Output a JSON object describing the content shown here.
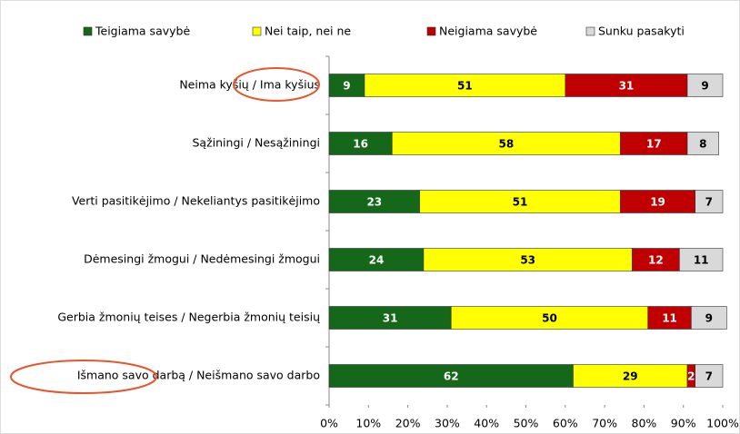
{
  "chart_data": {
    "type": "stacked-bar-horizontal",
    "categories": [
      "Neima kyšių / Ima kyšius",
      "Sąžiningi / Nesąžiningi",
      "Verti pasitikėjimo  / Nekeliantys pasitikėjimo",
      "Dėmesingi žmogui  / Nedėmesingi žmogui",
      "Gerbia žmonių teises / Negerbia žmonių teisių",
      "Išmano savo darbą / Neišmano savo darbo"
    ],
    "series": [
      {
        "name": "Teigiama savybė",
        "color": "#15671a",
        "values": [
          9,
          16,
          23,
          24,
          31,
          62
        ]
      },
      {
        "name": "Nei taip, nei ne",
        "color": "#ffff00",
        "values": [
          51,
          58,
          51,
          53,
          50,
          29
        ]
      },
      {
        "name": "Neigiama savybė",
        "color": "#c00000",
        "values": [
          31,
          17,
          19,
          12,
          11,
          2
        ]
      },
      {
        "name": "Sunku pasakyti",
        "color": "#d9d9d9",
        "values": [
          9,
          8,
          7,
          11,
          9,
          7
        ]
      }
    ],
    "xlim": [
      0,
      100
    ],
    "xticks": [
      {
        "value": 0,
        "label": "0%"
      },
      {
        "value": 10,
        "label": "10%"
      },
      {
        "value": 20,
        "label": "20%"
      },
      {
        "value": 30,
        "label": "30%"
      },
      {
        "value": 40,
        "label": "40%"
      },
      {
        "value": 50,
        "label": "50%"
      },
      {
        "value": 60,
        "label": "60%"
      },
      {
        "value": 70,
        "label": "70%"
      },
      {
        "value": 80,
        "label": "80%"
      },
      {
        "value": 90,
        "label": "90%"
      },
      {
        "value": 100,
        "label": "100%"
      }
    ],
    "legend": "top"
  }
}
